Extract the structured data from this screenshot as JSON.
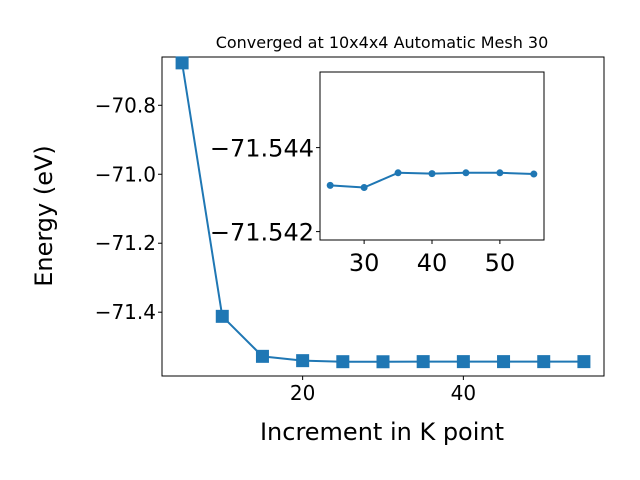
{
  "chart_data": [
    {
      "type": "line",
      "title": "Converged at 10x4x4 Automatic Mesh 30",
      "xlabel": "Increment in K point",
      "ylabel": "Energy (eV)",
      "xlim": [
        2.5,
        57.5
      ],
      "ylim": [
        -71.585,
        -70.66
      ],
      "xticks": [
        20,
        40
      ],
      "xtick_labels": [
        "20",
        "40"
      ],
      "yticks": [
        -71.4,
        -71.2,
        -71.0,
        -70.8
      ],
      "ytick_labels": [
        "−71.4",
        "−71.2",
        "−71.0",
        "−70.8"
      ],
      "grid": false,
      "marker": "square",
      "color": "#1f77b4",
      "series": [
        {
          "x": [
            5,
            10,
            15,
            20,
            25,
            30,
            35,
            40,
            45,
            50,
            55
          ],
          "y": [
            -70.677,
            -71.412,
            -71.528,
            -71.5405,
            -71.5435,
            -71.5437,
            -71.5433,
            -71.5433,
            -71.5433,
            -71.5433,
            -71.5433
          ]
        }
      ]
    },
    {
      "type": "line",
      "title": "",
      "xlabel": "",
      "ylabel": "",
      "xlim": [
        23.5,
        56.5
      ],
      "ylim": [
        -71.5418,
        -71.5458
      ],
      "xticks": [
        30,
        40,
        50
      ],
      "xtick_labels": [
        "30",
        "40",
        "50"
      ],
      "yticks": [
        -71.542,
        -71.544
      ],
      "ytick_labels": [
        "−71.542",
        "−71.544"
      ],
      "grid": false,
      "marker": "circle",
      "color": "#1f77b4",
      "series": [
        {
          "x": [
            25,
            30,
            35,
            40,
            45,
            50,
            55
          ],
          "y": [
            -71.5431,
            -71.54305,
            -71.5434,
            -71.54338,
            -71.5434,
            -71.5434,
            -71.54337
          ]
        }
      ]
    }
  ]
}
